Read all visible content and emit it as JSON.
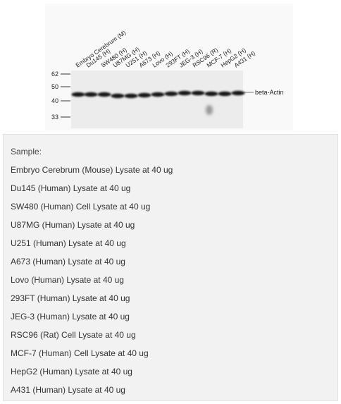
{
  "figure": {
    "lanes": [
      "Embryo Cerebrum (M)",
      "Du145 (H)",
      "SW480 (H)",
      "U87MG (H)",
      "U251 (H)",
      "A673 (H)",
      "Lovo (H)",
      "293FT (H)",
      "JEG-3 (H)",
      "RSC96 (R)",
      "MCF-7 (H)",
      "HepG2 (H)",
      "A431 (H)"
    ],
    "markers": [
      "62",
      "50",
      "40",
      "33"
    ],
    "band_label": "beta-Actin"
  },
  "caption": {
    "heading": "Sample:",
    "items": [
      "Embryo Cerebrum (Mouse) Lysate at 40 ug",
      "Du145 (Human) Lysate at 40 ug",
      "SW480 (Human) Cell Lysate at 40 ug",
      "U87MG (Human) Lysate at 40 ug",
      "U251 (Human) Lysate at 40 ug",
      "A673 (Human) Lysate at 40 ug",
      "Lovo (Human) Lysate at 40 ug",
      "293FT (Human) Lysate at 40 ug",
      "JEG-3 (Human) Lysate at 40 ug",
      "RSC96 (Rat) Cell Lysate at 40 ug",
      "MCF-7 (Human) Cell Lysate at 40 ug",
      "HepG2 (Human) Lysate at 40 ug",
      "A431 (Human) Lysate at 40 ug"
    ]
  }
}
